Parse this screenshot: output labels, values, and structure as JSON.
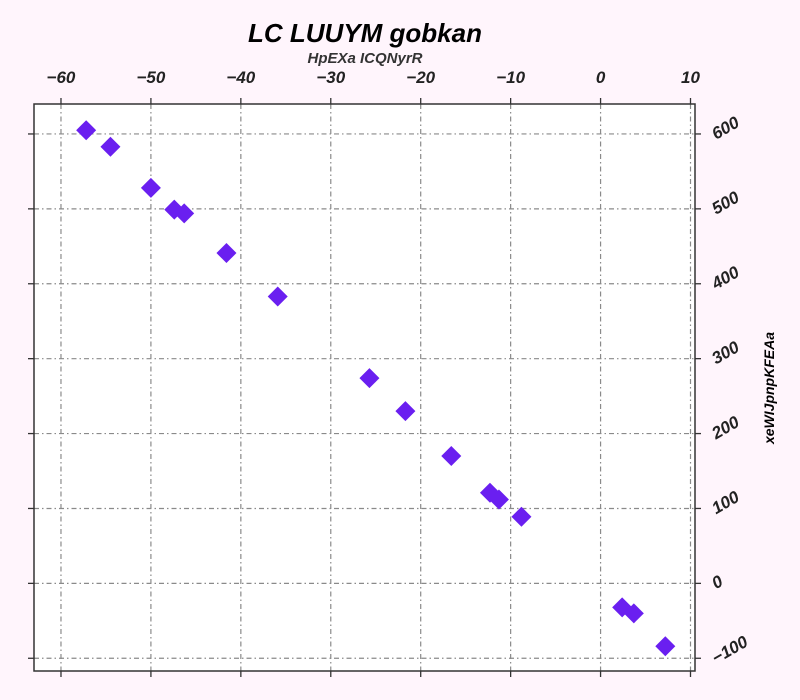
{
  "chart_data": {
    "type": "scatter",
    "title": "LC LUUYM gobkan",
    "xlabel": "HpEXa ICQNyrR",
    "ylabel": "xeWIJpnpKFEAa",
    "xlim": [
      -63,
      10.5
    ],
    "ylim": [
      -117,
      640
    ],
    "x_ticks": [
      -60,
      -50,
      -40,
      -30,
      -20,
      -10,
      0,
      10
    ],
    "x_tick_labels": [
      "−60",
      "−50",
      "−40",
      "−30",
      "−20",
      "−10",
      "0",
      "10"
    ],
    "y_ticks": [
      -100,
      0,
      100,
      200,
      300,
      400,
      500,
      600
    ],
    "y_tick_labels": [
      "−100",
      "0",
      "100",
      "200",
      "300",
      "400",
      "500",
      "600"
    ],
    "x_axis_position": "top",
    "y_axis_position": "right",
    "grid": true,
    "marker": "diamond",
    "color": "#6a1ff0",
    "background": "#fff5fc",
    "plot_background": "#ffffff",
    "series": [
      {
        "points": [
          {
            "x": -57.2,
            "y": 605
          },
          {
            "x": -54.5,
            "y": 583
          },
          {
            "x": -50.0,
            "y": 528
          },
          {
            "x": -47.4,
            "y": 499
          },
          {
            "x": -46.3,
            "y": 494
          },
          {
            "x": -41.6,
            "y": 441
          },
          {
            "x": -35.9,
            "y": 383
          },
          {
            "x": -25.7,
            "y": 274
          },
          {
            "x": -21.7,
            "y": 230
          },
          {
            "x": -16.6,
            "y": 170
          },
          {
            "x": -12.3,
            "y": 121
          },
          {
            "x": -11.3,
            "y": 112
          },
          {
            "x": -8.8,
            "y": 89
          },
          {
            "x": 2.4,
            "y": -32
          },
          {
            "x": 3.7,
            "y": -40
          },
          {
            "x": 7.2,
            "y": -84
          }
        ]
      }
    ]
  }
}
